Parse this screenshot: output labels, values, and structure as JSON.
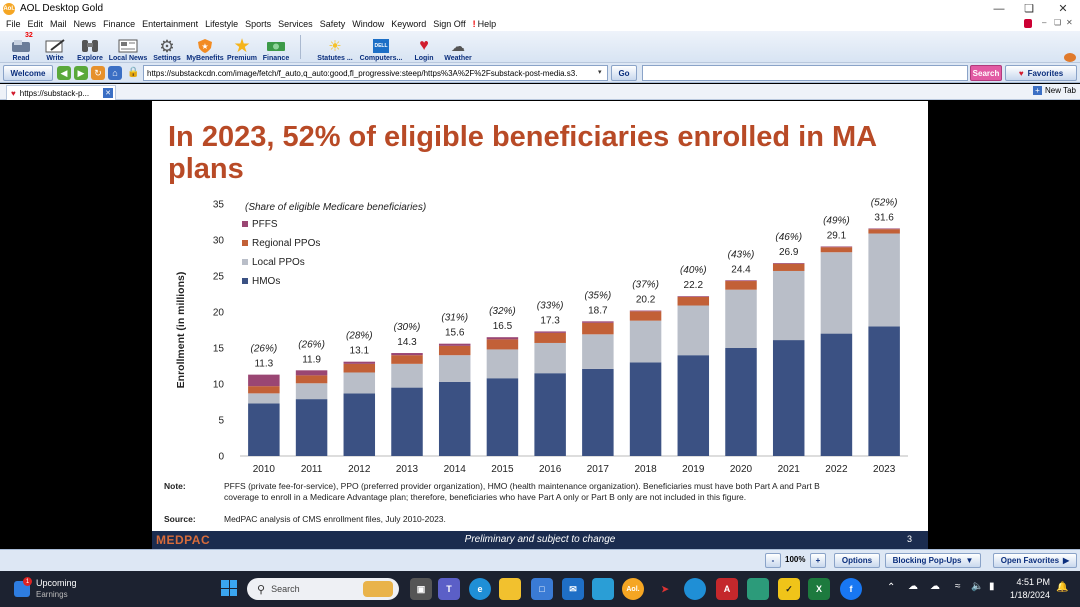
{
  "window": {
    "title": "AOL Desktop Gold",
    "logo": "Aol."
  },
  "menu": [
    "File",
    "Edit",
    "Mail",
    "News",
    "Finance",
    "Entertainment",
    "Lifestyle",
    "Sports",
    "Services",
    "Safety",
    "Window",
    "Keyword",
    "Sign Off",
    "Help"
  ],
  "toolbar": {
    "buttons": [
      {
        "label": "Read",
        "icon": "mail-icon",
        "badge": "32"
      },
      {
        "label": "Write",
        "icon": "write-icon"
      },
      {
        "label": "Explore",
        "icon": "binoculars-icon"
      },
      {
        "label": "Local News",
        "icon": "newspaper-icon"
      },
      {
        "label": "Settings",
        "icon": "gear-icon"
      },
      {
        "label": "MyBenefits",
        "icon": "shield-icon"
      },
      {
        "label": "Premium",
        "icon": "star-icon"
      },
      {
        "label": "Finance",
        "icon": "money-icon"
      },
      {
        "label": "Statutes ...",
        "icon": "sun-icon"
      },
      {
        "label": "Computers...",
        "icon": "dell-icon"
      },
      {
        "label": "Login",
        "icon": "heart-icon"
      },
      {
        "label": "Weather",
        "icon": "weather-icon"
      }
    ]
  },
  "address": {
    "welcome": "Welcome",
    "url": "https://substackcdn.com/image/fetch/f_auto,q_auto:good,fl_progressive:steep/https%3A%2F%2Fsubstack-post-media.s3.",
    "go": "Go",
    "search": "Search",
    "favorites": "Favorites"
  },
  "tabs": {
    "active": "https://substack-p...",
    "new_tab": "New Tab"
  },
  "slide": {
    "title": "In 2023, 52% of eligible beneficiaries enrolled in MA plans",
    "note_label": "Note:",
    "note_text_1": "PFFS (private fee-for-service), PPO (preferred provider organization), HMO (health maintenance organization). Beneficiaries must have both Part A and Part B",
    "note_text_2": "coverage to enroll in a Medicare Advantage plan; therefore, beneficiaries who have Part A only or Part B only are not included in this figure.",
    "source_label": "Source:",
    "source_text": "MedPAC analysis of CMS enrollment files, July 2010-2023.",
    "footer_brand": "MEDPAC",
    "footer_text": "Preliminary and subject to change",
    "page": "3"
  },
  "chart_data": {
    "type": "bar",
    "stacked": true,
    "subtitle": "(Share of eligible Medicare beneficiaries)",
    "ylabel": "Enrollment (in millions)",
    "ylim": [
      0,
      35
    ],
    "yticks": [
      0,
      5,
      10,
      15,
      20,
      25,
      30,
      35
    ],
    "categories": [
      "2010",
      "2011",
      "2012",
      "2013",
      "2014",
      "2015",
      "2016",
      "2017",
      "2018",
      "2019",
      "2020",
      "2021",
      "2022",
      "2023"
    ],
    "series": [
      {
        "name": "HMOs",
        "color": "#3b5183",
        "values": [
          7.3,
          7.9,
          8.7,
          9.5,
          10.3,
          10.8,
          11.5,
          12.1,
          13.0,
          14.0,
          15.0,
          16.1,
          17.0,
          18.0
        ]
      },
      {
        "name": "Local PPOs",
        "color": "#b9bec8",
        "values": [
          1.4,
          2.2,
          2.9,
          3.3,
          3.7,
          4.0,
          4.2,
          4.8,
          5.8,
          6.9,
          8.1,
          9.6,
          11.3,
          12.9
        ]
      },
      {
        "name": "Regional PPOs",
        "color": "#c26037",
        "values": [
          1.0,
          1.1,
          1.2,
          1.2,
          1.3,
          1.4,
          1.4,
          1.6,
          1.3,
          1.2,
          1.2,
          1.0,
          0.7,
          0.6
        ]
      },
      {
        "name": "PFFS",
        "color": "#9a4673",
        "values": [
          1.6,
          0.7,
          0.3,
          0.3,
          0.3,
          0.3,
          0.2,
          0.2,
          0.1,
          0.1,
          0.1,
          0.1,
          0.1,
          0.1
        ]
      }
    ],
    "totals": [
      "11.3",
      "11.9",
      "13.1",
      "14.3",
      "15.6",
      "16.5",
      "17.3",
      "18.7",
      "20.2",
      "22.2",
      "24.4",
      "26.9",
      "29.1",
      "31.6"
    ],
    "shares": [
      "(26%)",
      "(26%)",
      "(28%)",
      "(30%)",
      "(31%)",
      "(32%)",
      "(33%)",
      "(35%)",
      "(37%)",
      "(40%)",
      "(43%)",
      "(46%)",
      "(49%)",
      "(52%)"
    ],
    "legend_order": [
      "PFFS",
      "Regional PPOs",
      "Local PPOs",
      "HMOs"
    ],
    "legend_position": "top-left"
  },
  "status": {
    "zoom_minus": "-",
    "zoom": "100%",
    "zoom_plus": "+",
    "options": "Options",
    "popups": "Blocking Pop-Ups",
    "open_favorites": "Open Favorites"
  },
  "taskbar": {
    "weather_title": "Upcoming",
    "weather_sub": "Earnings",
    "weather_badge": "1",
    "search_placeholder": "Search",
    "time": "4:51 PM",
    "date": "1/18/2024"
  }
}
